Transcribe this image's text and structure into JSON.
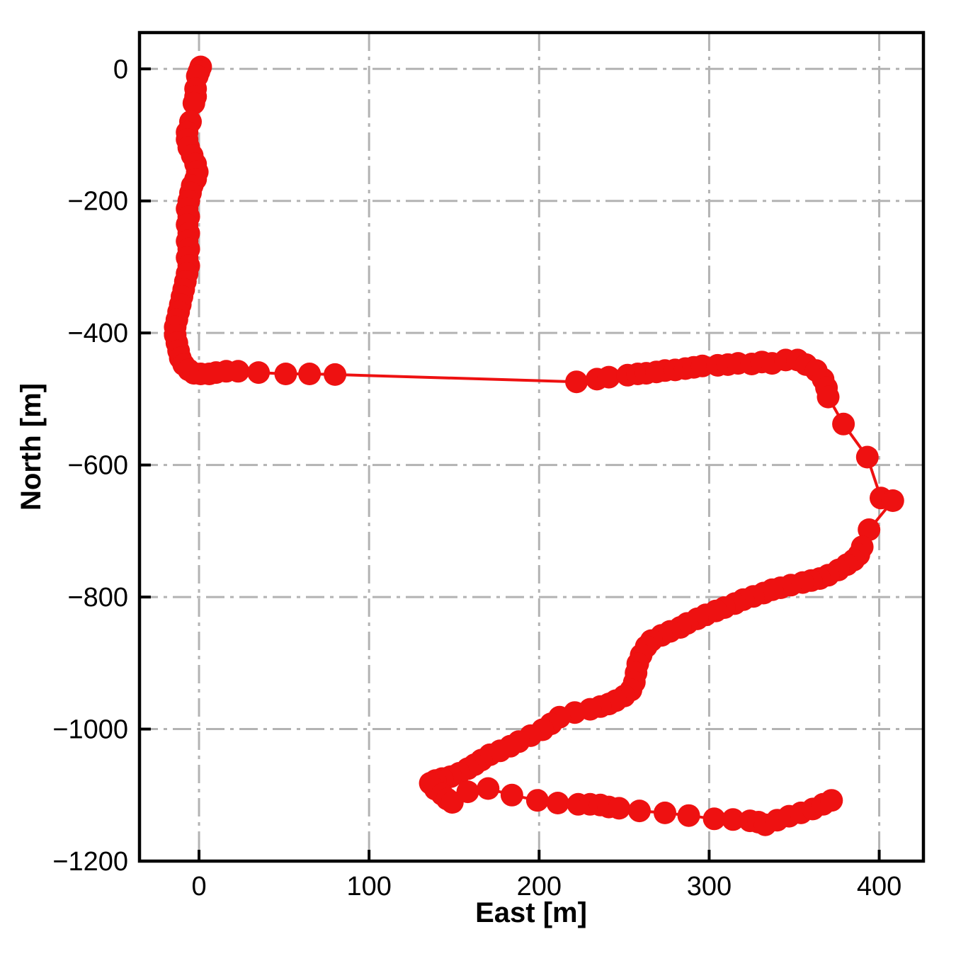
{
  "chart_data": {
    "type": "line",
    "title": "",
    "xlabel": "East [m]",
    "ylabel": "North [m]",
    "xlim": [
      -35,
      426
    ],
    "ylim": [
      -1200,
      55
    ],
    "xticks": [
      0,
      100,
      200,
      300,
      400
    ],
    "xtick_labels": [
      "0",
      "100",
      "200",
      "300",
      "400"
    ],
    "yticks": [
      0,
      -200,
      -400,
      -600,
      -800,
      -1000,
      -1200
    ],
    "ytick_labels": [
      "0",
      "−200",
      "−400",
      "−600",
      "−800",
      "−1000",
      "−1200"
    ],
    "grid": true,
    "grid_style": "dash-dot",
    "grid_color": "#b3b3b3",
    "line_color": "#ee1111",
    "marker": "circle",
    "legend": "none",
    "series": [
      {
        "name": "trajectory",
        "points": [
          [
            1,
            3
          ],
          [
            0,
            -4
          ],
          [
            -1,
            -11
          ],
          [
            -2,
            -30
          ],
          [
            -2,
            -42
          ],
          [
            -3,
            -52
          ],
          [
            -5,
            -80
          ],
          [
            -7,
            -96
          ],
          [
            -7,
            -107
          ],
          [
            -6,
            -119
          ],
          [
            -4,
            -131
          ],
          [
            -2,
            -144
          ],
          [
            -1,
            -156
          ],
          [
            -2,
            -167
          ],
          [
            -4,
            -177
          ],
          [
            -5,
            -188
          ],
          [
            -6,
            -200
          ],
          [
            -7,
            -212
          ],
          [
            -6,
            -224
          ],
          [
            -7,
            -236
          ],
          [
            -6,
            -249
          ],
          [
            -7,
            -261
          ],
          [
            -6,
            -273
          ],
          [
            -7,
            -286
          ],
          [
            -6,
            -298
          ],
          [
            -7,
            -310
          ],
          [
            -8,
            -322
          ],
          [
            -9,
            -334
          ],
          [
            -10,
            -345
          ],
          [
            -11,
            -357
          ],
          [
            -12,
            -368
          ],
          [
            -13,
            -380
          ],
          [
            -14,
            -391
          ],
          [
            -14,
            -403
          ],
          [
            -13,
            -415
          ],
          [
            -12,
            -427
          ],
          [
            -11,
            -438
          ],
          [
            -9,
            -448
          ],
          [
            -6,
            -456
          ],
          [
            -3,
            -461
          ],
          [
            1,
            -462
          ],
          [
            6,
            -462
          ],
          [
            10,
            -460
          ],
          [
            16,
            -458
          ],
          [
            23,
            -458
          ],
          [
            35,
            -460
          ],
          [
            51,
            -462
          ],
          [
            65,
            -462
          ],
          [
            80,
            -463
          ],
          [
            222,
            -474
          ],
          [
            234,
            -470
          ],
          [
            241,
            -467
          ],
          [
            252,
            -464
          ],
          [
            258,
            -462
          ],
          [
            263,
            -461
          ],
          [
            269,
            -459
          ],
          [
            274,
            -457
          ],
          [
            280,
            -456
          ],
          [
            286,
            -454
          ],
          [
            291,
            -452
          ],
          [
            296,
            -450
          ],
          [
            305,
            -449
          ],
          [
            311,
            -448
          ],
          [
            317,
            -446
          ],
          [
            325,
            -447
          ],
          [
            331,
            -444
          ],
          [
            337,
            -446
          ],
          [
            345,
            -441
          ],
          [
            352,
            -441
          ],
          [
            357,
            -448
          ],
          [
            363,
            -457
          ],
          [
            367,
            -470
          ],
          [
            369,
            -483
          ],
          [
            370,
            -497
          ],
          [
            379,
            -538
          ],
          [
            393,
            -588
          ],
          [
            401,
            -650
          ],
          [
            408,
            -654
          ],
          [
            394,
            -698
          ],
          [
            390,
            -724
          ],
          [
            388,
            -736
          ],
          [
            385,
            -744
          ],
          [
            381,
            -751
          ],
          [
            376,
            -759
          ],
          [
            370,
            -767
          ],
          [
            365,
            -772
          ],
          [
            360,
            -775
          ],
          [
            355,
            -778
          ],
          [
            348,
            -782
          ],
          [
            342,
            -786
          ],
          [
            337,
            -789
          ],
          [
            332,
            -794
          ],
          [
            326,
            -799
          ],
          [
            320,
            -804
          ],
          [
            315,
            -810
          ],
          [
            309,
            -816
          ],
          [
            304,
            -821
          ],
          [
            298,
            -827
          ],
          [
            293,
            -833
          ],
          [
            287,
            -840
          ],
          [
            283,
            -846
          ],
          [
            277,
            -852
          ],
          [
            272,
            -858
          ],
          [
            266,
            -866
          ],
          [
            263,
            -875
          ],
          [
            260,
            -888
          ],
          [
            258,
            -901
          ],
          [
            257,
            -915
          ],
          [
            256,
            -929
          ],
          [
            254,
            -941
          ],
          [
            250,
            -950
          ],
          [
            245,
            -957
          ],
          [
            241,
            -962
          ],
          [
            236,
            -966
          ],
          [
            230,
            -970
          ],
          [
            221,
            -975
          ],
          [
            212,
            -982
          ],
          [
            207,
            -992
          ],
          [
            202,
            -1001
          ],
          [
            195,
            -1010
          ],
          [
            188,
            -1019
          ],
          [
            183,
            -1026
          ],
          [
            177,
            -1033
          ],
          [
            171,
            -1039
          ],
          [
            166,
            -1047
          ],
          [
            162,
            -1054
          ],
          [
            158,
            -1060
          ],
          [
            153,
            -1067
          ],
          [
            148,
            -1072
          ],
          [
            143,
            -1075
          ],
          [
            139,
            -1078
          ],
          [
            136,
            -1082
          ],
          [
            139,
            -1091
          ],
          [
            143,
            -1099
          ],
          [
            146,
            -1106
          ],
          [
            149,
            -1111
          ],
          [
            158,
            -1095
          ],
          [
            170,
            -1090
          ],
          [
            184,
            -1100
          ],
          [
            199,
            -1108
          ],
          [
            211,
            -1112
          ],
          [
            223,
            -1114
          ],
          [
            230,
            -1114
          ],
          [
            236,
            -1115
          ],
          [
            241,
            -1118
          ],
          [
            247,
            -1120
          ],
          [
            259,
            -1124
          ],
          [
            274,
            -1127
          ],
          [
            288,
            -1131
          ],
          [
            303,
            -1136
          ],
          [
            314,
            -1137
          ],
          [
            324,
            -1139
          ],
          [
            329,
            -1141
          ],
          [
            333,
            -1145
          ],
          [
            340,
            -1138
          ],
          [
            347,
            -1132
          ],
          [
            354,
            -1127
          ],
          [
            361,
            -1121
          ],
          [
            367,
            -1114
          ],
          [
            372,
            -1108
          ]
        ]
      }
    ]
  }
}
